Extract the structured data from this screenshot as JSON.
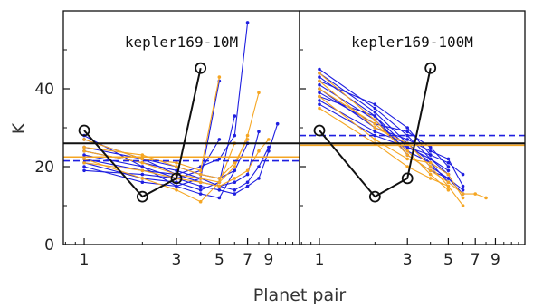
{
  "chart_data": {
    "type": "line",
    "xlabel": "Planet pair",
    "ylabel": "K",
    "x_scale": "log",
    "xlim": [
      0.78,
      13
    ],
    "ylim": [
      0,
      60
    ],
    "yticks": [
      0,
      20,
      40
    ],
    "xticks": [
      1,
      3,
      5,
      7,
      9
    ],
    "grid": false,
    "panels": [
      {
        "title": "kepler169-10M",
        "hlines": [
          {
            "y": 26,
            "color": "#111111",
            "style": "solid"
          },
          {
            "y": 22.5,
            "color": "#f5a623",
            "style": "solid"
          },
          {
            "y": 21.5,
            "color": "#1f1fe0",
            "style": "dashed"
          }
        ],
        "highlight": {
          "x": [
            1,
            2,
            3,
            4
          ],
          "y": [
            29.3,
            12.3,
            17,
            45.3
          ],
          "color": "#111111"
        },
        "series": [
          {
            "color": "#1f1fe0",
            "x": [
              1,
              2,
              3,
              4,
              5
            ],
            "y": [
              28,
              20,
              15,
              17,
              42
            ]
          },
          {
            "color": "#1f1fe0",
            "x": [
              1,
              2,
              3,
              4,
              5,
              6,
              7
            ],
            "y": [
              25,
              22,
              18,
              20,
              22,
              28,
              57
            ]
          },
          {
            "color": "#1f1fe0",
            "x": [
              1,
              2,
              3,
              4,
              5,
              6
            ],
            "y": [
              21,
              17,
              16,
              14,
              16,
              33
            ]
          },
          {
            "color": "#1f1fe0",
            "x": [
              1,
              2,
              3,
              4,
              5,
              6,
              7,
              8
            ],
            "y": [
              24,
              21,
              19,
              17,
              15,
              16,
              18,
              29
            ]
          },
          {
            "color": "#1f1fe0",
            "x": [
              1,
              2,
              3,
              4,
              5,
              6,
              7,
              8,
              9,
              10
            ],
            "y": [
              23,
              20,
              17,
              15,
              14,
              13,
              15,
              17,
              24,
              31
            ]
          },
          {
            "color": "#1f1fe0",
            "x": [
              1,
              2,
              3,
              4,
              5,
              6
            ],
            "y": [
              20,
              16,
              15,
              13,
              12,
              19
            ]
          },
          {
            "color": "#1f1fe0",
            "x": [
              1,
              2,
              3,
              4,
              5,
              6,
              7
            ],
            "y": [
              27,
              22,
              20,
              18,
              17,
              19,
              26
            ]
          },
          {
            "color": "#1f1fe0",
            "x": [
              1,
              2,
              3,
              4,
              5,
              6,
              7,
              8,
              9
            ],
            "y": [
              22,
              19,
              18,
              16,
              15,
              14,
              16,
              20,
              25
            ]
          },
          {
            "color": "#1f1fe0",
            "x": [
              1,
              2,
              3,
              4,
              5
            ],
            "y": [
              19,
              18,
              17,
              19,
              27
            ]
          },
          {
            "color": "#f5a623",
            "x": [
              1,
              2,
              3,
              4,
              5
            ],
            "y": [
              27,
              22,
              21,
              19,
              43
            ]
          },
          {
            "color": "#f5a623",
            "x": [
              1,
              2,
              3,
              4,
              5,
              6,
              7,
              8
            ],
            "y": [
              24,
              21,
              18,
              17,
              16,
              20,
              28,
              39
            ]
          },
          {
            "color": "#f5a623",
            "x": [
              1,
              2,
              3,
              4,
              5,
              6
            ],
            "y": [
              22,
              17,
              14,
              11,
              16,
              26
            ]
          },
          {
            "color": "#f5a623",
            "x": [
              1,
              2,
              3,
              4,
              5,
              6,
              7
            ],
            "y": [
              25,
              23,
              20,
              18,
              17,
              21,
              27
            ]
          },
          {
            "color": "#f5a623",
            "x": [
              1,
              2,
              3,
              4,
              5,
              6,
              7,
              8,
              9
            ],
            "y": [
              21,
              19,
              17,
              16,
              15,
              17,
              19,
              24,
              27
            ]
          }
        ]
      },
      {
        "title": "kepler169-100M",
        "hlines": [
          {
            "y": 28,
            "color": "#1f1fe0",
            "style": "dashed"
          },
          {
            "y": 26,
            "color": "#111111",
            "style": "solid"
          },
          {
            "y": 25.5,
            "color": "#f5a623",
            "style": "solid"
          }
        ],
        "highlight": {
          "x": [
            1,
            2,
            3,
            4
          ],
          "y": [
            29.3,
            12.3,
            17,
            45.3
          ],
          "color": "#111111"
        },
        "series": [
          {
            "color": "#1f1fe0",
            "x": [
              1,
              2,
              3,
              4,
              5
            ],
            "y": [
              45,
              35,
              28,
              22,
              18
            ]
          },
          {
            "color": "#1f1fe0",
            "x": [
              1,
              2,
              3,
              4,
              5,
              6
            ],
            "y": [
              44,
              34,
              26,
              20,
              17,
              14
            ]
          },
          {
            "color": "#1f1fe0",
            "x": [
              1,
              2,
              3,
              4,
              5
            ],
            "y": [
              43,
              33,
              25,
              22,
              19
            ]
          },
          {
            "color": "#1f1fe0",
            "x": [
              1,
              2,
              3,
              4,
              5,
              6
            ],
            "y": [
              42,
              36,
              30,
              23,
              21,
              18
            ]
          },
          {
            "color": "#1f1fe0",
            "x": [
              1,
              2,
              3,
              4,
              5
            ],
            "y": [
              41,
              32,
              24,
              21,
              16
            ]
          },
          {
            "color": "#1f1fe0",
            "x": [
              1,
              2,
              3,
              4,
              5,
              6
            ],
            "y": [
              40,
              30,
              27,
              24,
              22,
              15
            ]
          },
          {
            "color": "#1f1fe0",
            "x": [
              1,
              2,
              3,
              4,
              5
            ],
            "y": [
              39,
              31,
              29,
              25,
              20
            ]
          },
          {
            "color": "#1f1fe0",
            "x": [
              1,
              2,
              3,
              4,
              5,
              6
            ],
            "y": [
              38,
              33,
              23,
              19,
              17,
              13
            ]
          },
          {
            "color": "#1f1fe0",
            "x": [
              1,
              2,
              3,
              4,
              5
            ],
            "y": [
              37,
              29,
              26,
              21,
              18
            ]
          },
          {
            "color": "#1f1fe0",
            "x": [
              1,
              2,
              3,
              4
            ],
            "y": [
              36,
              28,
              25,
              23
            ]
          },
          {
            "color": "#f5a623",
            "x": [
              1,
              2,
              3,
              4,
              5,
              6,
              7,
              8
            ],
            "y": [
              44,
              32,
              23,
              19,
              16,
              13,
              13,
              12
            ]
          },
          {
            "color": "#f5a623",
            "x": [
              1,
              2,
              3,
              4,
              5,
              6
            ],
            "y": [
              42,
              30,
              26,
              20,
              15,
              10
            ]
          },
          {
            "color": "#f5a623",
            "x": [
              1,
              2,
              3,
              4,
              5
            ],
            "y": [
              40,
              31,
              24,
              18,
              14
            ]
          },
          {
            "color": "#f5a623",
            "x": [
              1,
              2,
              3,
              4,
              5,
              6
            ],
            "y": [
              38,
              27,
              22,
              21,
              18,
              12
            ]
          },
          {
            "color": "#f5a623",
            "x": [
              1,
              2,
              3,
              4,
              5
            ],
            "y": [
              35,
              26,
              20,
              17,
              15
            ]
          }
        ]
      }
    ]
  }
}
